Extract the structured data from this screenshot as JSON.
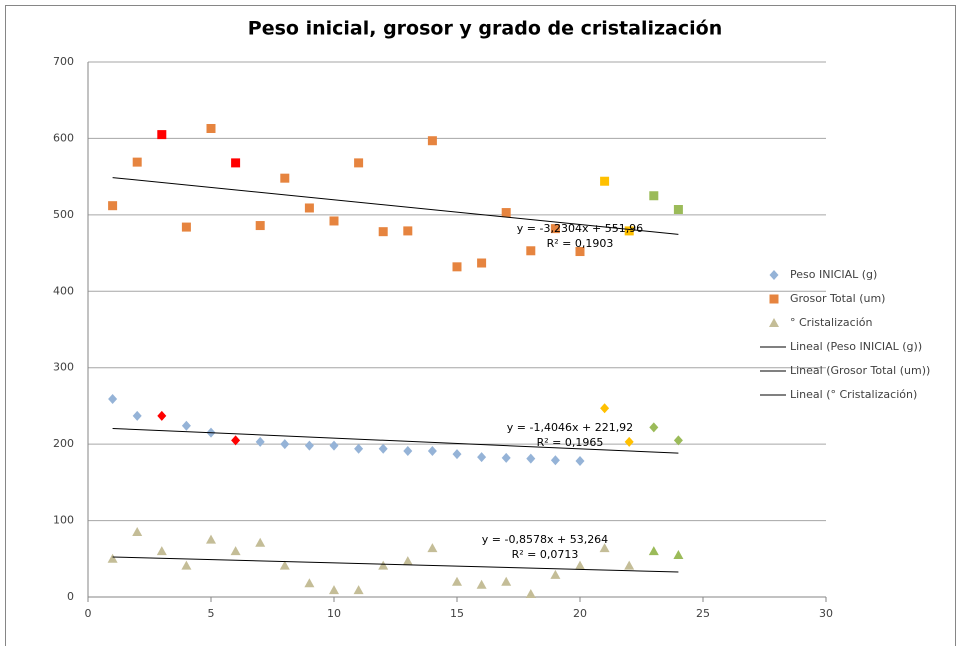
{
  "chart_data": {
    "type": "scatter",
    "title": "Peso inicial, grosor y grado de cristalización",
    "x": [
      1,
      2,
      3,
      4,
      5,
      6,
      7,
      8,
      9,
      10,
      11,
      12,
      13,
      14,
      15,
      16,
      17,
      18,
      19,
      20,
      21,
      22,
      23,
      24
    ],
    "series": [
      {
        "name": "Peso INICIAL (g)",
        "marker": "diamond",
        "color": "#95b3d7",
        "colors": [
          "#95b3d7",
          "#95b3d7",
          "#ff0000",
          "#95b3d7",
          "#95b3d7",
          "#ff0000",
          "#95b3d7",
          "#95b3d7",
          "#95b3d7",
          "#95b3d7",
          "#95b3d7",
          "#95b3d7",
          "#95b3d7",
          "#95b3d7",
          "#95b3d7",
          "#95b3d7",
          "#95b3d7",
          "#95b3d7",
          "#95b3d7",
          "#95b3d7",
          "#ffc000",
          "#ffc000",
          "#9bbb59",
          "#9bbb59"
        ],
        "values": [
          259,
          237,
          237,
          224,
          215,
          205,
          203,
          200,
          198,
          198,
          194,
          194,
          191,
          191,
          187,
          183,
          182,
          181,
          179,
          178,
          247,
          203,
          222,
          205
        ]
      },
      {
        "name": "Grosor Total (um)",
        "marker": "square",
        "color": "#e6843f",
        "colors": [
          "#e6843f",
          "#e6843f",
          "#ff0000",
          "#e6843f",
          "#e6843f",
          "#ff0000",
          "#e6843f",
          "#e6843f",
          "#e6843f",
          "#e6843f",
          "#e6843f",
          "#e6843f",
          "#e6843f",
          "#e6843f",
          "#e6843f",
          "#e6843f",
          "#e6843f",
          "#e6843f",
          "#e6843f",
          "#e6843f",
          "#ffc000",
          "#ffc000",
          "#9bbb59",
          "#9bbb59"
        ],
        "values": [
          512,
          569,
          605,
          484,
          613,
          568,
          486,
          548,
          509,
          492,
          568,
          478,
          479,
          597,
          432,
          437,
          503,
          453,
          482,
          452,
          544,
          479,
          525,
          507
        ]
      },
      {
        "name": "° Cristalización",
        "marker": "triangle",
        "color": "#c4bd97",
        "colors": [
          "#c4bd97",
          "#c4bd97",
          "#c4bd97",
          "#c4bd97",
          "#c4bd97",
          "#c4bd97",
          "#c4bd97",
          "#c4bd97",
          "#c4bd97",
          "#c4bd97",
          "#c4bd97",
          "#c4bd97",
          "#c4bd97",
          "#c4bd97",
          "#c4bd97",
          "#c4bd97",
          "#c4bd97",
          "#c4bd97",
          "#c4bd97",
          "#c4bd97",
          "#c4bd97",
          "#c4bd97",
          "#9bbb59",
          "#9bbb59"
        ],
        "values": [
          50,
          85,
          60,
          41,
          75,
          60,
          71,
          41,
          18,
          9,
          9,
          41,
          47,
          64,
          20,
          16,
          20,
          4,
          29,
          41,
          64,
          41,
          60,
          55
        ]
      }
    ],
    "trendlines": [
      {
        "name": "Lineal (Peso INICIAL (g))",
        "slope": -1.4046,
        "intercept": 221.92,
        "equation": "y = -1,4046x + 221,92",
        "r2": "R² = 0,1965"
      },
      {
        "name": "Lineal (Grosor Total (um))",
        "slope": -3.2304,
        "intercept": 551.96,
        "equation": "y = -3,2304x + 551,96",
        "r2": "R² = 0,1903"
      },
      {
        "name": "Lineal (° Cristalización)",
        "slope": -0.8578,
        "intercept": 53.264,
        "equation": "y = -0,8578x + 53,264",
        "r2": "R² = 0,0713"
      }
    ],
    "xlim": [
      0,
      30
    ],
    "xticks": [
      0,
      5,
      10,
      15,
      20,
      25,
      30
    ],
    "ylim": [
      0,
      700
    ],
    "yticks": [
      0,
      100,
      200,
      300,
      400,
      500,
      600,
      700
    ],
    "grid": true,
    "legend": "right"
  }
}
